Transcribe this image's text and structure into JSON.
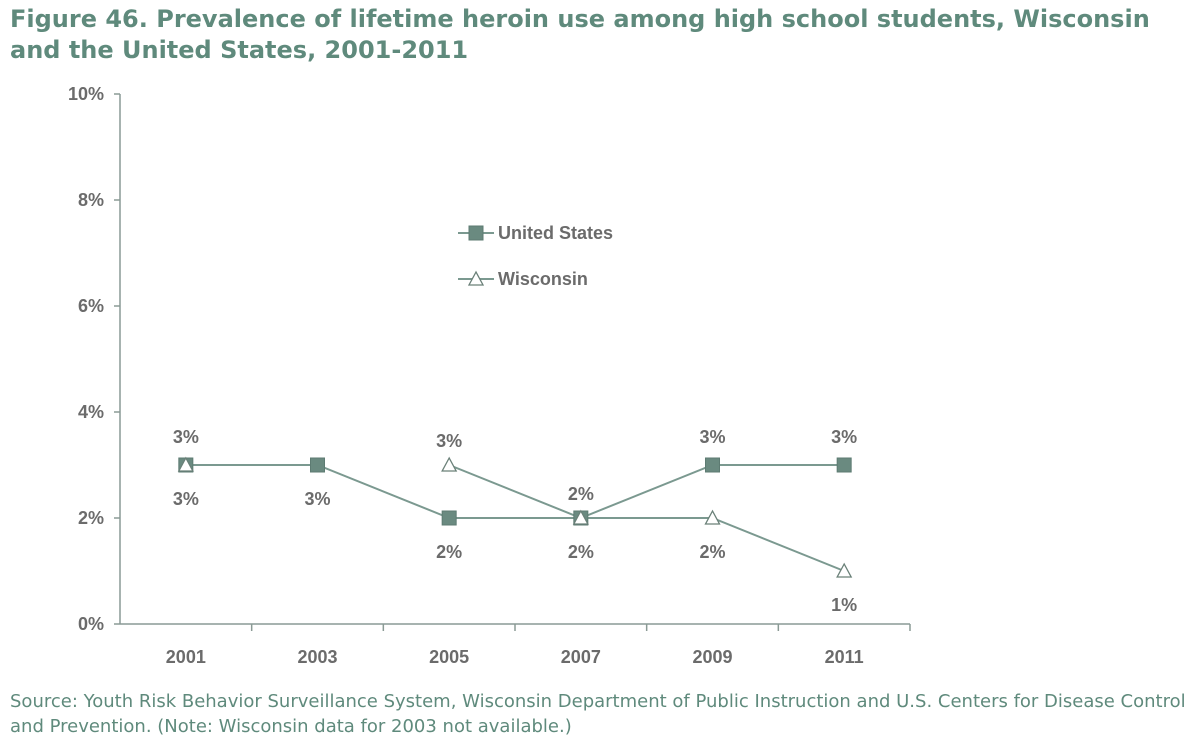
{
  "figure": {
    "title": "Figure 46.  Prevalence of lifetime heroin use among high school students, Wisconsin and the United States, 2001-2011",
    "source": "Source:  Youth Risk Behavior Surveillance System, Wisconsin Department of Public Instruction and U.S. Centers for Disease Control and Prevention.  (Note:  Wisconsin data for 2003 not available.)"
  },
  "chart_data": {
    "type": "line",
    "title": "Figure 46.  Prevalence of lifetime heroin use among high school students, Wisconsin and the United States, 2001-2011",
    "xlabel": "",
    "ylabel": "",
    "categories": [
      "2001",
      "2003",
      "2005",
      "2007",
      "2009",
      "2011"
    ],
    "ylim": [
      0,
      10
    ],
    "yticks": [
      0,
      2,
      4,
      6,
      8,
      10
    ],
    "ytick_labels": [
      "0%",
      "2%",
      "4%",
      "6%",
      "8%",
      "10%"
    ],
    "grid": false,
    "legend_position": "center",
    "colors": {
      "united_states": "#6a8a80",
      "wisconsin": "#ffffff",
      "line": "#7b9990",
      "axis": "#8a9a95",
      "text": "#6b6b6b"
    },
    "series": [
      {
        "name": "United States",
        "marker": "square",
        "values": [
          3,
          3,
          2,
          2,
          3,
          3
        ],
        "labels": [
          "3%",
          "3%",
          "2%",
          "2%",
          "3%",
          "3%"
        ]
      },
      {
        "name": "Wisconsin",
        "marker": "triangle",
        "values": [
          3,
          null,
          3,
          2,
          2,
          1
        ],
        "labels": [
          "3%",
          "",
          "3%",
          "2%",
          "2%",
          "1%"
        ]
      }
    ]
  }
}
